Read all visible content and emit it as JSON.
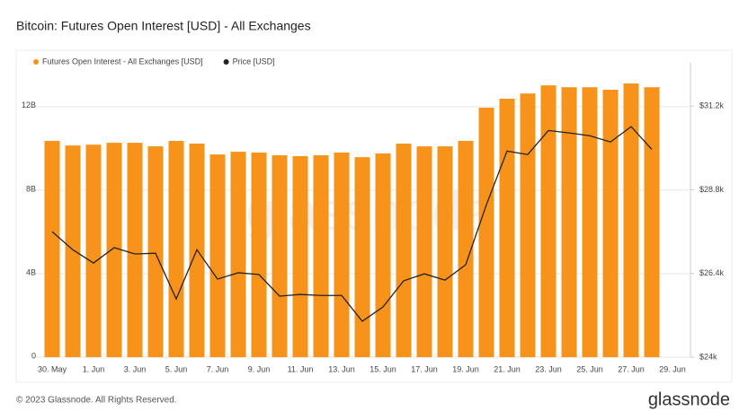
{
  "chart_data": {
    "type": "bar",
    "title": "Bitcoin: Futures Open Interest [USD] - All Exchanges",
    "watermark": "glassnode",
    "footer": "© 2023 Glassnode. All Rights Reserved.",
    "brand": "glassnode",
    "categories": [
      "30. May",
      null,
      "1. Jun",
      null,
      "3. Jun",
      null,
      "5. Jun",
      null,
      "7. Jun",
      null,
      "9. Jun",
      null,
      "11. Jun",
      null,
      "13. Jun",
      null,
      "15. Jun",
      null,
      "17. Jun",
      null,
      "19. Jun",
      null,
      "21. Jun",
      null,
      "23. Jun",
      null,
      "25. Jun",
      null,
      "27. Jun",
      null,
      "29. Jun"
    ],
    "series": [
      {
        "name": "Futures Open Interest - All Exchanges [USD]",
        "color": "#f7931a",
        "type": "bar",
        "values": [
          10.36,
          10.14,
          10.18,
          10.27,
          10.27,
          10.1,
          10.36,
          10.23,
          9.71,
          9.84,
          9.8,
          9.67,
          9.63,
          9.67,
          9.8,
          9.58,
          9.76,
          10.23,
          10.1,
          10.1,
          10.36,
          11.95,
          12.38,
          12.63,
          13.02,
          12.93,
          12.93,
          12.81,
          13.11,
          12.93,
          null
        ]
      },
      {
        "name": "Price [USD]",
        "color": "#222222",
        "type": "line",
        "axis": "y2",
        "values": [
          27.6,
          27.08,
          26.7,
          27.14,
          26.96,
          26.98,
          25.67,
          27.08,
          26.24,
          26.42,
          26.37,
          25.75,
          25.8,
          25.77,
          25.77,
          25.03,
          25.44,
          26.19,
          26.39,
          26.21,
          26.65,
          28.37,
          29.91,
          29.81,
          30.5,
          30.43,
          30.35,
          30.17,
          30.61,
          29.96,
          null
        ]
      }
    ],
    "ylim": [
      0,
      14.1
    ],
    "yticks": [
      {
        "value": 0,
        "label": "0"
      },
      {
        "value": 4,
        "label": "4B"
      },
      {
        "value": 8,
        "label": "8B"
      },
      {
        "value": 12,
        "label": "12B"
      }
    ],
    "y2lim": [
      24,
      32.44
    ],
    "y2ticks": [
      {
        "value": 24,
        "label": "$24k"
      },
      {
        "value": 26.4,
        "label": "$26.4k"
      },
      {
        "value": 28.8,
        "label": "$28.8k"
      },
      {
        "value": 31.2,
        "label": "$31.2k"
      }
    ],
    "grid": true
  }
}
